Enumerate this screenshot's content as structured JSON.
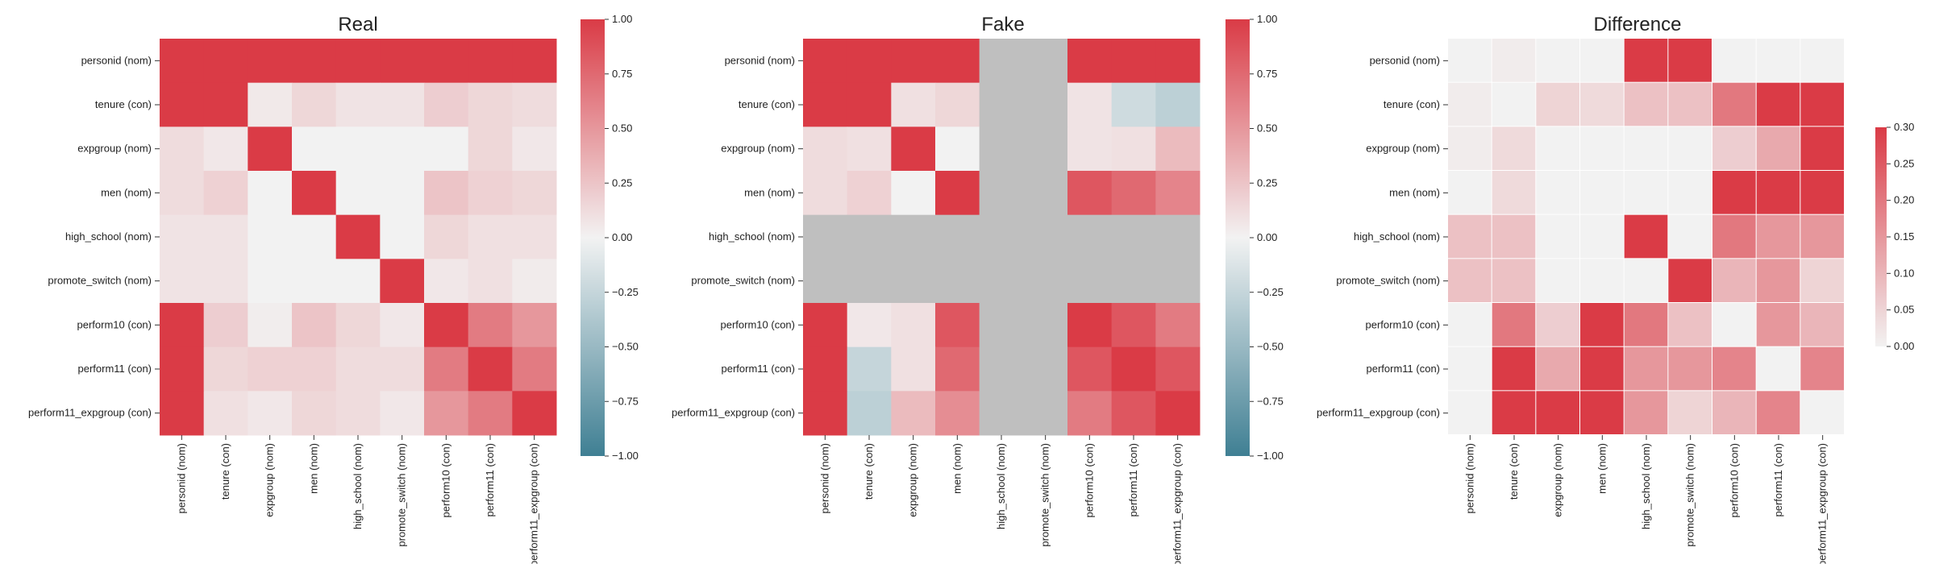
{
  "chart_data": [
    {
      "type": "heatmap",
      "title": "Real",
      "labels": [
        "personid (nom)",
        "tenure (con)",
        "expgroup (nom)",
        "men (nom)",
        "high_school (nom)",
        "promote_switch (nom)",
        "perform10 (con)",
        "perform11 (con)",
        "perform11_expgroup (con)"
      ],
      "values": [
        [
          1,
          1,
          1,
          1,
          1,
          1,
          1,
          1,
          1
        ],
        [
          1,
          1,
          0.05,
          0.15,
          0.08,
          0.08,
          0.2,
          0.15,
          0.12
        ],
        [
          0.12,
          0.06,
          1,
          0,
          0,
          0,
          0,
          0.15,
          0.06
        ],
        [
          0.12,
          0.18,
          0,
          1,
          0,
          0,
          0.25,
          0.18,
          0.15
        ],
        [
          0.08,
          0.08,
          0,
          0,
          1,
          0,
          0.15,
          0.1,
          0.1
        ],
        [
          0.08,
          0.08,
          0,
          0,
          0,
          1,
          0.06,
          0.1,
          0.04
        ],
        [
          1,
          0.2,
          0.03,
          0.25,
          0.15,
          0.06,
          1,
          0.65,
          0.5
        ],
        [
          1,
          0.15,
          0.18,
          0.18,
          0.12,
          0.12,
          0.65,
          1,
          0.65
        ],
        [
          1,
          0.1,
          0.06,
          0.15,
          0.12,
          0.06,
          0.5,
          0.65,
          1
        ]
      ],
      "colorbar": {
        "vmin": -1,
        "vmax": 1,
        "ticks": [
          "1.00",
          "0.75",
          "0.50",
          "0.25",
          "0.00",
          "−0.25",
          "−0.50",
          "−0.75",
          "−1.00"
        ]
      },
      "colors": {
        "positive": "#da3b46",
        "neutral": "#f2f2f2",
        "negative": "#3f7f93"
      }
    },
    {
      "type": "heatmap",
      "title": "Fake",
      "labels": [
        "personid (nom)",
        "tenure (con)",
        "expgroup (nom)",
        "men (nom)",
        "high_school (nom)",
        "promote_switch (nom)",
        "perform10 (con)",
        "perform11 (con)",
        "perform11_expgroup (con)"
      ],
      "values": [
        [
          1,
          1,
          1,
          1,
          null,
          null,
          1,
          1,
          1
        ],
        [
          1,
          1,
          0.1,
          0.15,
          null,
          null,
          0.08,
          -0.2,
          -0.3
        ],
        [
          0.12,
          0.1,
          1,
          0,
          null,
          null,
          0.08,
          0.1,
          0.3
        ],
        [
          0.12,
          0.18,
          0,
          1,
          null,
          null,
          0.85,
          0.75,
          0.6
        ],
        [
          null,
          null,
          null,
          null,
          null,
          null,
          null,
          null,
          null
        ],
        [
          null,
          null,
          null,
          null,
          null,
          null,
          null,
          null,
          null
        ],
        [
          1,
          0.06,
          0.1,
          0.85,
          null,
          null,
          1,
          0.85,
          0.65
        ],
        [
          1,
          -0.25,
          0.1,
          0.75,
          null,
          null,
          0.85,
          1,
          0.85
        ],
        [
          1,
          -0.3,
          0.3,
          0.55,
          null,
          null,
          0.65,
          0.85,
          1
        ]
      ],
      "colorbar": {
        "vmin": -1,
        "vmax": 1,
        "ticks": [
          "1.00",
          "0.75",
          "0.50",
          "0.25",
          "0.00",
          "−0.25",
          "−0.50",
          "−0.75",
          "−1.00"
        ]
      },
      "colors": {
        "positive": "#da3b46",
        "neutral": "#f2f2f2",
        "negative": "#3f7f93",
        "missing": "#bfbfbf"
      }
    },
    {
      "type": "heatmap",
      "title": "Difference",
      "labels": [
        "personid (nom)",
        "tenure (con)",
        "expgroup (nom)",
        "men (nom)",
        "high_school (nom)",
        "promote_switch (nom)",
        "perform10 (con)",
        "perform11 (con)",
        "perform11_expgroup (con)"
      ],
      "values": [
        [
          0,
          0.01,
          0,
          0,
          0.3,
          0.3,
          0,
          0,
          0
        ],
        [
          0.01,
          0,
          0.05,
          0.04,
          0.08,
          0.08,
          0.2,
          0.3,
          0.3
        ],
        [
          0.01,
          0.04,
          0,
          0,
          0,
          0,
          0.06,
          0.12,
          0.3
        ],
        [
          0,
          0.04,
          0,
          0,
          0,
          0,
          0.3,
          0.3,
          0.3
        ],
        [
          0.08,
          0.08,
          0,
          0,
          0.3,
          0,
          0.2,
          0.15,
          0.15
        ],
        [
          0.08,
          0.08,
          0,
          0,
          0,
          0.3,
          0.1,
          0.15,
          0.05
        ],
        [
          0,
          0.2,
          0.06,
          0.3,
          0.2,
          0.08,
          0,
          0.15,
          0.1
        ],
        [
          0,
          0.3,
          0.12,
          0.3,
          0.15,
          0.15,
          0.18,
          0,
          0.18
        ],
        [
          0,
          0.3,
          0.3,
          0.3,
          0.15,
          0.05,
          0.1,
          0.18,
          0
        ]
      ],
      "colorbar": {
        "vmin": 0,
        "vmax": 0.3,
        "ticks": [
          "0.30",
          "0.25",
          "0.20",
          "0.15",
          "0.10",
          "0.05",
          "0.00"
        ]
      },
      "colors": {
        "positive": "#da3b46",
        "neutral": "#f2f2f2"
      }
    }
  ]
}
